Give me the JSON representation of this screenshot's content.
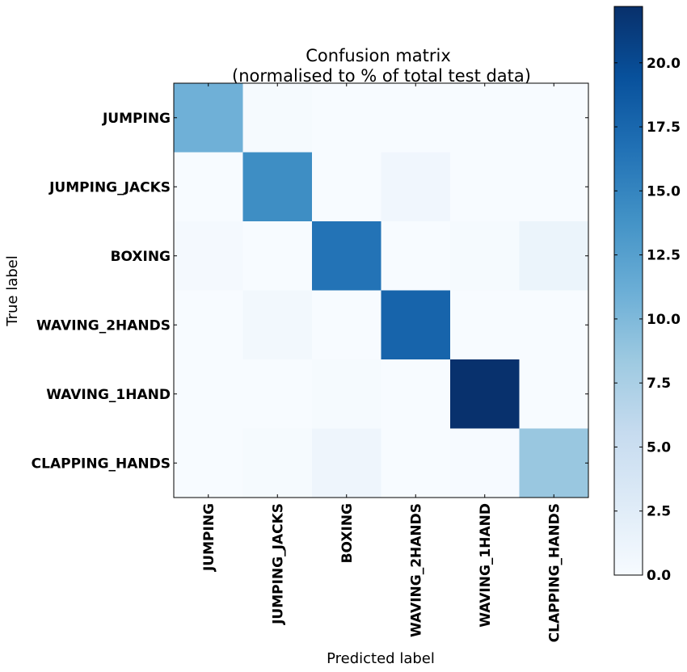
{
  "chart_data": {
    "type": "heatmap",
    "title_line1": "Confusion matrix",
    "title_line2": "(normalised to % of total test data)",
    "xlabel": "Predicted label",
    "ylabel": "True label",
    "x_categories": [
      "JUMPING",
      "JUMPING_JACKS",
      "BOXING",
      "WAVING_2HANDS",
      "WAVING_1HAND",
      "CLAPPING_HANDS"
    ],
    "y_categories": [
      "JUMPING",
      "JUMPING_JACKS",
      "BOXING",
      "WAVING_2HANDS",
      "WAVING_1HAND",
      "CLAPPING_HANDS"
    ],
    "values": [
      [
        10.9,
        0.2,
        0.0,
        0.0,
        0.0,
        0.0
      ],
      [
        0.0,
        14.2,
        0.0,
        0.8,
        0.0,
        0.0
      ],
      [
        0.3,
        0.0,
        16.5,
        0.0,
        0.2,
        1.3
      ],
      [
        0.0,
        0.6,
        0.0,
        17.8,
        0.0,
        0.0
      ],
      [
        0.0,
        0.0,
        0.2,
        0.0,
        22.1,
        0.0
      ],
      [
        0.0,
        0.2,
        1.0,
        0.0,
        0.1,
        8.6
      ]
    ],
    "colorscale": "Blues",
    "colorbar": {
      "min": 0.0,
      "max": 22.2,
      "ticks": [
        "0.0",
        "2.5",
        "5.0",
        "7.5",
        "10.0",
        "12.5",
        "15.0",
        "17.5",
        "20.0"
      ]
    }
  }
}
